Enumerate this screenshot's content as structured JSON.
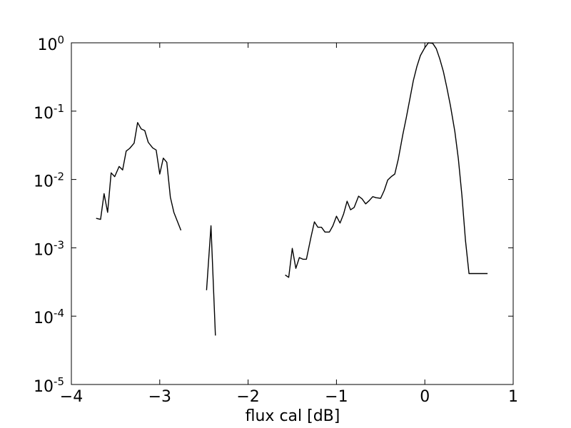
{
  "chart_data": {
    "type": "line",
    "title": "",
    "xlabel": "flux cal [dB]",
    "ylabel": "",
    "xlim": [
      -4,
      1
    ],
    "ylim": [
      1e-05,
      1
    ],
    "yscale": "log",
    "grid": false,
    "line_color": "#000000",
    "x_ticks": [
      {
        "value": -4,
        "label": "−4"
      },
      {
        "value": -3,
        "label": "−3"
      },
      {
        "value": -2,
        "label": "−2"
      },
      {
        "value": -1,
        "label": "−1"
      },
      {
        "value": 0,
        "label": "0"
      },
      {
        "value": 1,
        "label": "1"
      }
    ],
    "y_ticks": [
      {
        "value": 1,
        "base": "10",
        "exp": "0"
      },
      {
        "value": 0.1,
        "base": "10",
        "exp": "-1"
      },
      {
        "value": 0.01,
        "base": "10",
        "exp": "-2"
      },
      {
        "value": 0.001,
        "base": "10",
        "exp": "-3"
      },
      {
        "value": 0.0001,
        "base": "10",
        "exp": "-4"
      },
      {
        "value": 1e-05,
        "base": "10",
        "exp": "-5"
      }
    ],
    "segments": [
      {
        "x": [
          -3.72,
          -3.67,
          -3.63,
          -3.59,
          -3.55,
          -3.51,
          -3.46,
          -3.42,
          -3.38,
          -3.34,
          -3.29,
          -3.25,
          -3.21,
          -3.17,
          -3.13,
          -3.08,
          -3.04,
          -3.0,
          -2.96,
          -2.92,
          -2.88,
          -2.84,
          -2.76
        ],
        "y": [
          0.0027,
          0.0026,
          0.0062,
          0.0033,
          0.0125,
          0.011,
          0.0155,
          0.0138,
          0.026,
          0.0285,
          0.034,
          0.068,
          0.055,
          0.052,
          0.035,
          0.029,
          0.027,
          0.012,
          0.0205,
          0.0178,
          0.0055,
          0.0033,
          0.0018
        ]
      },
      {
        "x": [
          -2.47,
          -2.42,
          -2.37
        ],
        "y": [
          0.00024,
          0.0021,
          5.2e-05
        ]
      },
      {
        "x": [
          -1.58,
          -1.54,
          -1.5,
          -1.46,
          -1.42,
          -1.38,
          -1.34,
          -1.29,
          -1.25,
          -1.21,
          -1.17,
          -1.13,
          -1.08,
          -1.04,
          -1.0,
          -0.96,
          -0.92,
          -0.88,
          -0.84,
          -0.8,
          -0.75,
          -0.71,
          -0.67,
          -0.63,
          -0.59,
          -0.55,
          -0.5,
          -0.46,
          -0.42,
          -0.38,
          -0.34,
          -0.3,
          -0.25,
          -0.21,
          -0.17,
          -0.13,
          -0.09,
          -0.05,
          0.0,
          0.04,
          0.09,
          0.13,
          0.17,
          0.21,
          0.25,
          0.29,
          0.34,
          0.38,
          0.42,
          0.46,
          0.5,
          0.54,
          0.59,
          0.63,
          0.67,
          0.71
        ],
        "y": [
          0.0004,
          0.00037,
          0.00098,
          0.0005,
          0.00072,
          0.00068,
          0.00068,
          0.0014,
          0.0024,
          0.002,
          0.002,
          0.0017,
          0.0017,
          0.0021,
          0.0029,
          0.0023,
          0.0031,
          0.0048,
          0.0036,
          0.0039,
          0.0057,
          0.0052,
          0.0044,
          0.0049,
          0.0056,
          0.0054,
          0.0053,
          0.0069,
          0.0098,
          0.011,
          0.012,
          0.02,
          0.045,
          0.08,
          0.15,
          0.28,
          0.45,
          0.65,
          0.85,
          1.0,
          0.98,
          0.82,
          0.58,
          0.38,
          0.22,
          0.12,
          0.05,
          0.02,
          0.0058,
          0.0013,
          0.00042,
          0.00042,
          0.00042,
          0.00042,
          0.00042,
          0.00042
        ]
      }
    ]
  }
}
